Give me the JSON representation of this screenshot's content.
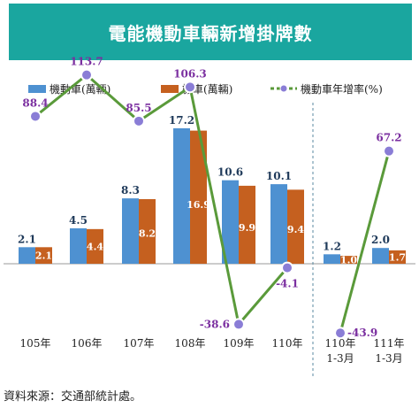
{
  "title": "電能機動車輛新增掛牌數",
  "source": "資料來源：交通部統計處。",
  "colors": {
    "header_bg": "#1aa69f",
    "car": "#4e91d1",
    "motorcycle": "#c5601f",
    "growth_line": "#5a9a3a",
    "growth_marker": "#8a7dd6",
    "growth_label": "#7b2fa0"
  },
  "chart_data": {
    "type": "bar",
    "categories": [
      "105年",
      "106年",
      "107年",
      "108年",
      "109年",
      "110年",
      "110年\n1-3月",
      "111年\n1-3月"
    ],
    "series": [
      {
        "name": "機動車(萬輛)",
        "type": "bar",
        "values": [
          2.1,
          4.5,
          8.3,
          17.2,
          10.6,
          10.1,
          1.2,
          2.0
        ]
      },
      {
        "name": "機車(萬輛)",
        "type": "bar",
        "values": [
          2.1,
          4.4,
          8.2,
          16.9,
          9.9,
          9.4,
          1.0,
          1.7
        ]
      },
      {
        "name": "機動車年增率(%)",
        "type": "line",
        "values": [
          88.4,
          113.7,
          85.5,
          106.3,
          -38.6,
          -4.1,
          -43.9,
          67.2
        ]
      }
    ],
    "legend": "top",
    "grid": false,
    "divider_before_index": 6
  }
}
